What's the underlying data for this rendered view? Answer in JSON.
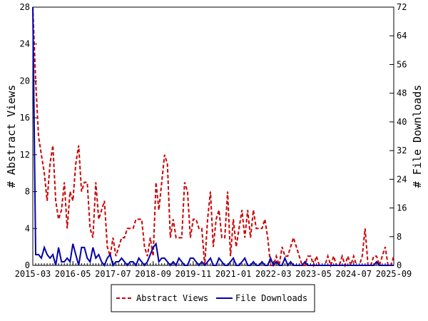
{
  "chart_data": {
    "type": "line",
    "ylabel_left": "# Abstract Views",
    "ylabel_right": "# File Downloads",
    "x_ticks": [
      "2015-03",
      "2016-05",
      "2017-07",
      "2018-09",
      "2019-11",
      "2021-01",
      "2022-03",
      "2023-05",
      "2024-07",
      "2025-09"
    ],
    "x_range": [
      "2015-03",
      "2025-09"
    ],
    "y_left_range": [
      0,
      28
    ],
    "y_left_ticks": [
      0,
      4,
      8,
      12,
      16,
      20,
      24,
      28
    ],
    "y_right_range": [
      0,
      72
    ],
    "y_right_ticks": [
      0,
      8,
      16,
      24,
      32,
      40,
      48,
      56,
      64,
      72
    ],
    "grid": false,
    "legend_position": "bottom",
    "series": [
      {
        "name": "Abstract Views",
        "axis": "left",
        "color": "#cc0000",
        "style": "dashed",
        "x": [
          "2015-03",
          "2015-04",
          "2015-05",
          "2015-06",
          "2015-07",
          "2015-08",
          "2015-09",
          "2015-10",
          "2015-11",
          "2015-12",
          "2016-01",
          "2016-02",
          "2016-03",
          "2016-04",
          "2016-05",
          "2016-06",
          "2016-07",
          "2016-08",
          "2016-09",
          "2016-10",
          "2016-11",
          "2016-12",
          "2017-01",
          "2017-02",
          "2017-03",
          "2017-04",
          "2017-05",
          "2017-06",
          "2017-07",
          "2017-08",
          "2017-09",
          "2017-10",
          "2017-11",
          "2017-12",
          "2018-01",
          "2018-02",
          "2018-03",
          "2018-04",
          "2018-05",
          "2018-06",
          "2018-07",
          "2018-08",
          "2018-09",
          "2018-10",
          "2018-11",
          "2018-12",
          "2019-01",
          "2019-02",
          "2019-03",
          "2019-04",
          "2019-05",
          "2019-06",
          "2019-07",
          "2019-08",
          "2019-09",
          "2019-10",
          "2019-11",
          "2019-12",
          "2020-01",
          "2020-02",
          "2020-03",
          "2020-04",
          "2020-05",
          "2020-06",
          "2020-07",
          "2020-08",
          "2020-09",
          "2020-10",
          "2020-11",
          "2020-12",
          "2021-01",
          "2021-02",
          "2021-03",
          "2021-04",
          "2021-05",
          "2021-06",
          "2021-07",
          "2021-08",
          "2021-09",
          "2021-10",
          "2021-11",
          "2021-12",
          "2022-01",
          "2022-02",
          "2022-03",
          "2022-04",
          "2022-05",
          "2022-06",
          "2022-07",
          "2022-08",
          "2022-09",
          "2022-10",
          "2022-11",
          "2022-12",
          "2023-01",
          "2023-02",
          "2023-03",
          "2023-04",
          "2023-05",
          "2023-06",
          "2023-07",
          "2023-08",
          "2023-09",
          "2023-10",
          "2023-11",
          "2023-12",
          "2024-01",
          "2024-02",
          "2024-03",
          "2024-04",
          "2024-05",
          "2024-06",
          "2024-07",
          "2024-08",
          "2024-09",
          "2024-10",
          "2024-11",
          "2024-12",
          "2025-01",
          "2025-02",
          "2025-03",
          "2025-04",
          "2025-05",
          "2025-06",
          "2025-07",
          "2025-08",
          "2025-09"
        ],
        "values": [
          28,
          20,
          14,
          12,
          10,
          7,
          11,
          13,
          7,
          5,
          6,
          9,
          4,
          8,
          7,
          11,
          13,
          8,
          9,
          9,
          4,
          3,
          9,
          5,
          6,
          7,
          2,
          1,
          3,
          1,
          2,
          3,
          3,
          4,
          4,
          4,
          5,
          5,
          5,
          2,
          1,
          3,
          1,
          9,
          6,
          9,
          12,
          11,
          3,
          5,
          3,
          3,
          3,
          9,
          8,
          3,
          5,
          5,
          4,
          4,
          0,
          5,
          8,
          2,
          5,
          6,
          3,
          3,
          8,
          1,
          5,
          2,
          4,
          6,
          3,
          6,
          3,
          6,
          4,
          4,
          4,
          5,
          3,
          0,
          0,
          1,
          0,
          2,
          1,
          1,
          2,
          3,
          2,
          1,
          0,
          0,
          1,
          1,
          0,
          1,
          0,
          0,
          0,
          1,
          0,
          1,
          0,
          0,
          1,
          0,
          1,
          0,
          1,
          0,
          0,
          1,
          4,
          0,
          0,
          1,
          1,
          0,
          1,
          2,
          0,
          0,
          1
        ]
      },
      {
        "name": "File Downloads",
        "axis": "right",
        "color": "#0000aa",
        "style": "solid",
        "x": [
          "2015-03",
          "2015-04",
          "2015-05",
          "2015-06",
          "2015-07",
          "2015-08",
          "2015-09",
          "2015-10",
          "2015-11",
          "2015-12",
          "2016-01",
          "2016-02",
          "2016-03",
          "2016-04",
          "2016-05",
          "2016-06",
          "2016-07",
          "2016-08",
          "2016-09",
          "2016-10",
          "2016-11",
          "2016-12",
          "2017-01",
          "2017-02",
          "2017-03",
          "2017-04",
          "2017-05",
          "2017-06",
          "2017-07",
          "2017-08",
          "2017-09",
          "2017-10",
          "2017-11",
          "2017-12",
          "2018-01",
          "2018-02",
          "2018-03",
          "2018-04",
          "2018-05",
          "2018-06",
          "2018-07",
          "2018-08",
          "2018-09",
          "2018-10",
          "2018-11",
          "2018-12",
          "2019-01",
          "2019-02",
          "2019-03",
          "2019-04",
          "2019-05",
          "2019-06",
          "2019-07",
          "2019-08",
          "2019-09",
          "2019-10",
          "2019-11",
          "2019-12",
          "2020-01",
          "2020-02",
          "2020-03",
          "2020-04",
          "2020-05",
          "2020-06",
          "2020-07",
          "2020-08",
          "2020-09",
          "2020-10",
          "2020-11",
          "2020-12",
          "2021-01",
          "2021-02",
          "2021-03",
          "2021-04",
          "2021-05",
          "2021-06",
          "2021-07",
          "2021-08",
          "2021-09",
          "2021-10",
          "2021-11",
          "2021-12",
          "2022-01",
          "2022-02",
          "2022-03",
          "2022-04",
          "2022-05",
          "2022-06",
          "2022-07",
          "2022-08",
          "2022-09",
          "2022-10",
          "2022-11",
          "2022-12",
          "2023-01",
          "2023-02",
          "2023-03",
          "2023-04",
          "2023-05",
          "2023-06",
          "2023-07",
          "2023-08",
          "2023-09",
          "2023-10",
          "2023-11",
          "2023-12",
          "2024-01",
          "2024-02",
          "2024-03",
          "2024-04",
          "2024-05",
          "2024-06",
          "2024-07",
          "2024-08",
          "2024-09",
          "2024-10",
          "2024-11",
          "2024-12",
          "2025-01",
          "2025-02",
          "2025-03",
          "2025-04",
          "2025-05",
          "2025-06",
          "2025-07",
          "2025-08",
          "2025-09"
        ],
        "values": [
          72,
          3,
          3,
          2,
          5,
          3,
          2,
          3,
          0,
          5,
          1,
          1,
          2,
          1,
          6,
          3,
          0,
          5,
          5,
          2,
          1,
          5,
          2,
          3,
          1,
          0,
          2,
          3,
          0,
          1,
          1,
          2,
          1,
          0,
          1,
          1,
          0,
          2,
          1,
          0,
          1,
          3,
          5,
          6,
          1,
          2,
          2,
          1,
          0,
          1,
          0,
          2,
          1,
          0,
          0,
          2,
          2,
          1,
          0,
          1,
          0,
          1,
          2,
          0,
          0,
          2,
          1,
          0,
          0,
          1,
          2,
          0,
          0,
          1,
          2,
          0,
          0,
          1,
          0,
          0,
          1,
          0,
          0,
          2,
          0,
          1,
          0,
          0,
          2,
          0,
          1,
          0,
          0,
          0,
          0,
          1,
          0,
          0,
          0,
          0,
          0,
          0,
          0,
          0,
          0,
          0,
          0,
          0,
          0,
          0,
          0,
          0,
          0,
          0,
          0,
          0,
          0,
          0,
          0,
          0,
          1,
          0,
          0,
          0,
          0,
          0,
          0
        ]
      }
    ]
  }
}
